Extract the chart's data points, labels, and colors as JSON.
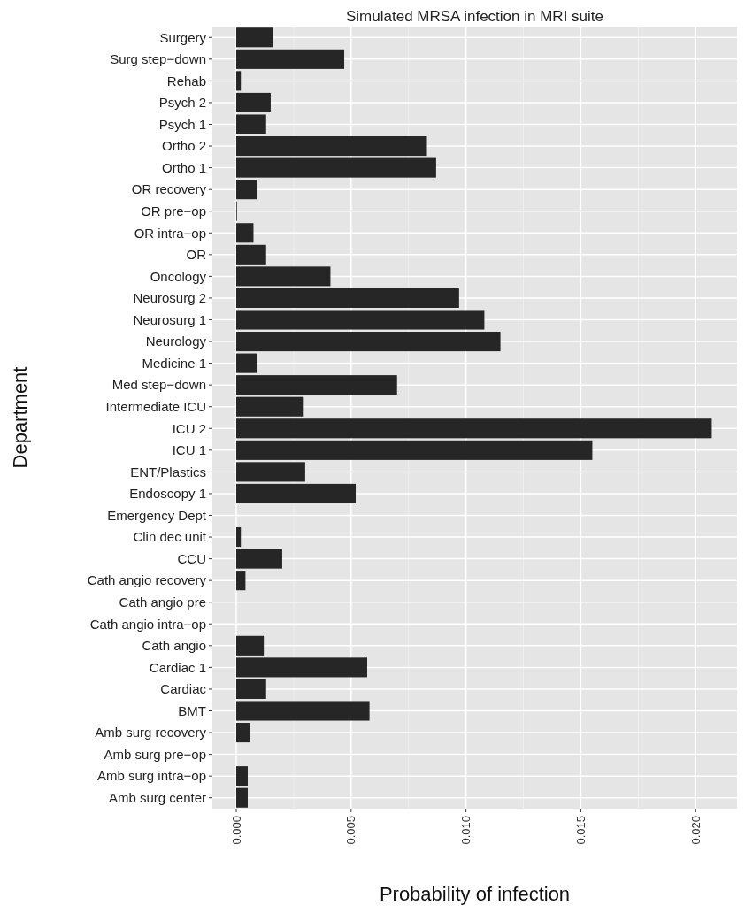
{
  "chart_data": {
    "type": "bar",
    "orientation": "horizontal",
    "title": "Simulated MRSA infection in MRI suite",
    "xlabel": "Probability of infection",
    "ylabel": "Department",
    "categories": [
      "Surgery",
      "Surg step−down",
      "Rehab",
      "Psych 2",
      "Psych 1",
      "Ortho 2",
      "Ortho 1",
      "OR recovery",
      "OR pre−op",
      "OR intra−op",
      "OR",
      "Oncology",
      "Neurosurg 2",
      "Neurosurg 1",
      "Neurology",
      "Medicine 1",
      "Med step−down",
      "Intermediate ICU",
      "ICU 2",
      "ICU 1",
      "ENT/Plastics",
      "Endoscopy 1",
      "Emergency Dept",
      "Clin dec unit",
      "CCU",
      "Cath angio recovery",
      "Cath angio pre",
      "Cath angio intra−op",
      "Cath angio",
      "Cardiac 1",
      "Cardiac",
      "BMT",
      "Amb surg recovery",
      "Amb surg pre−op",
      "Amb surg intra−op",
      "Amb surg center"
    ],
    "values": [
      0.0016,
      0.0047,
      0.0002,
      0.0015,
      0.0013,
      0.0083,
      0.0087,
      0.0009,
      3e-05,
      0.00075,
      0.0013,
      0.0041,
      0.0097,
      0.0108,
      0.0115,
      0.0009,
      0.007,
      0.0029,
      0.0207,
      0.0155,
      0.003,
      0.0052,
      0,
      0.0002,
      0.002,
      0.0004,
      0,
      0,
      0.0012,
      0.0057,
      0.0013,
      0.0058,
      0.0006,
      0,
      0.0005,
      0.0005
    ],
    "color": "#262626",
    "xlim": [
      -0.00104,
      0.0218
    ],
    "xticks": [
      {
        "value": 0,
        "label": "0.000"
      },
      {
        "value": 0.005,
        "label": "0.005"
      },
      {
        "value": 0.01,
        "label": "0.010"
      },
      {
        "value": 0.015,
        "label": "0.015"
      },
      {
        "value": 0.02,
        "label": "0.020"
      }
    ],
    "grid": true
  }
}
